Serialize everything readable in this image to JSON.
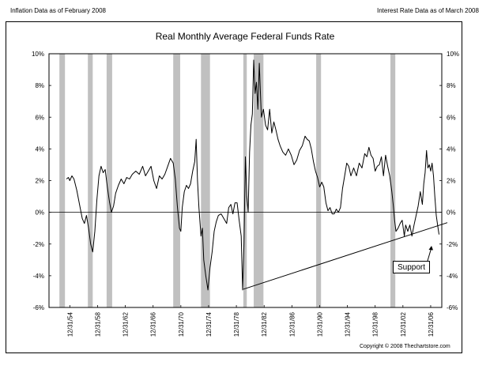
{
  "header": {
    "left_note": "Inflation Data as of February 2008",
    "right_note": "Interest Rate Data as of March 2008"
  },
  "footer": {
    "copyright": "Copyright © 2008 Thechartstore.com"
  },
  "colors": {
    "recession": "#c0c0c0",
    "line": "#000000",
    "background": "#ffffff"
  },
  "chart_data": {
    "type": "line",
    "title": "Real Monthly Average Federal Funds Rate",
    "xlabel": "",
    "ylabel": "",
    "ylim": [
      -6,
      10
    ],
    "xlim": [
      1951.0,
      2009.4
    ],
    "y_ticks": [
      10,
      8,
      6,
      4,
      2,
      0,
      -2,
      -4,
      -6
    ],
    "y_tick_labels": [
      "10%",
      "8%",
      "6%",
      "4%",
      "2%",
      "0%",
      "-2%",
      "-4%",
      "-6%"
    ],
    "x_ticks": [
      1955,
      1959,
      1963,
      1967,
      1971,
      1975,
      1979,
      1983,
      1987,
      1991,
      1995,
      1999,
      2003,
      2007
    ],
    "x_tick_labels": [
      "12/31/54",
      "12/31/58",
      "12/31/62",
      "12/31/66",
      "12/31/70",
      "12/31/74",
      "12/31/78",
      "12/31/82",
      "12/31/86",
      "12/31/90",
      "12/31/94",
      "12/31/98",
      "12/31/02",
      "12/31/06"
    ],
    "grid": false,
    "legend": "none",
    "recessions": [
      [
        1953.5,
        1954.3
      ],
      [
        1957.6,
        1958.3
      ],
      [
        1960.3,
        1961.1
      ],
      [
        1969.9,
        1970.9
      ],
      [
        1973.9,
        1975.2
      ],
      [
        1980.0,
        1980.5
      ],
      [
        1981.5,
        1982.9
      ],
      [
        1990.5,
        1991.2
      ],
      [
        2001.2,
        2001.9
      ]
    ],
    "series": [
      {
        "values": [
          [
            1954.5,
            2.1
          ],
          [
            1954.8,
            2.2
          ],
          [
            1955.0,
            2.0
          ],
          [
            1955.3,
            2.3
          ],
          [
            1955.6,
            2.1
          ],
          [
            1956.0,
            1.4
          ],
          [
            1956.4,
            0.5
          ],
          [
            1956.8,
            -0.4
          ],
          [
            1957.1,
            -0.7
          ],
          [
            1957.4,
            -0.2
          ],
          [
            1957.7,
            -1.0
          ],
          [
            1958.0,
            -2.0
          ],
          [
            1958.3,
            -2.5
          ],
          [
            1958.6,
            -1.2
          ],
          [
            1958.9,
            0.8
          ],
          [
            1959.2,
            2.3
          ],
          [
            1959.5,
            2.9
          ],
          [
            1959.8,
            2.5
          ],
          [
            1960.1,
            2.7
          ],
          [
            1960.4,
            1.6
          ],
          [
            1960.7,
            0.7
          ],
          [
            1961.0,
            0.0
          ],
          [
            1961.3,
            0.4
          ],
          [
            1961.6,
            1.2
          ],
          [
            1962.0,
            1.7
          ],
          [
            1962.4,
            2.1
          ],
          [
            1962.8,
            1.8
          ],
          [
            1963.2,
            2.2
          ],
          [
            1963.6,
            2.1
          ],
          [
            1964.0,
            2.4
          ],
          [
            1964.5,
            2.6
          ],
          [
            1965.0,
            2.4
          ],
          [
            1965.5,
            2.9
          ],
          [
            1965.9,
            2.3
          ],
          [
            1966.3,
            2.6
          ],
          [
            1966.7,
            2.9
          ],
          [
            1967.1,
            2.0
          ],
          [
            1967.5,
            1.5
          ],
          [
            1967.9,
            2.3
          ],
          [
            1968.3,
            2.1
          ],
          [
            1968.7,
            2.4
          ],
          [
            1969.1,
            2.9
          ],
          [
            1969.5,
            3.4
          ],
          [
            1969.9,
            3.1
          ],
          [
            1970.2,
            2.1
          ],
          [
            1970.5,
            0.4
          ],
          [
            1970.8,
            -1.0
          ],
          [
            1971.0,
            -1.2
          ],
          [
            1971.2,
            0.3
          ],
          [
            1971.5,
            1.3
          ],
          [
            1971.8,
            1.7
          ],
          [
            1972.1,
            1.5
          ],
          [
            1972.4,
            1.8
          ],
          [
            1972.7,
            2.6
          ],
          [
            1973.0,
            3.2
          ],
          [
            1973.2,
            4.6
          ],
          [
            1973.4,
            2.0
          ],
          [
            1973.6,
            0.3
          ],
          [
            1973.9,
            -1.5
          ],
          [
            1974.1,
            -1.0
          ],
          [
            1974.3,
            -3.0
          ],
          [
            1974.6,
            -4.0
          ],
          [
            1974.9,
            -4.9
          ],
          [
            1975.2,
            -3.5
          ],
          [
            1975.5,
            -2.5
          ],
          [
            1975.8,
            -1.2
          ],
          [
            1976.1,
            -0.6
          ],
          [
            1976.4,
            -0.2
          ],
          [
            1976.8,
            -0.1
          ],
          [
            1977.2,
            -0.4
          ],
          [
            1977.6,
            -0.7
          ],
          [
            1977.9,
            0.3
          ],
          [
            1978.2,
            0.5
          ],
          [
            1978.5,
            -0.1
          ],
          [
            1978.8,
            0.6
          ],
          [
            1979.1,
            0.6
          ],
          [
            1979.4,
            -0.5
          ],
          [
            1979.7,
            -1.5
          ],
          [
            1979.9,
            -4.9
          ],
          [
            1980.1,
            -2.0
          ],
          [
            1980.3,
            3.5
          ],
          [
            1980.5,
            1.0
          ],
          [
            1980.7,
            0.0
          ],
          [
            1980.9,
            3.8
          ],
          [
            1981.1,
            5.5
          ],
          [
            1981.3,
            6.2
          ],
          [
            1981.5,
            9.6
          ],
          [
            1981.7,
            7.5
          ],
          [
            1981.9,
            8.2
          ],
          [
            1982.1,
            6.5
          ],
          [
            1982.3,
            9.4
          ],
          [
            1982.6,
            6.0
          ],
          [
            1982.9,
            6.5
          ],
          [
            1983.2,
            5.5
          ],
          [
            1983.5,
            5.2
          ],
          [
            1983.8,
            6.5
          ],
          [
            1984.1,
            5.0
          ],
          [
            1984.4,
            5.7
          ],
          [
            1984.7,
            5.2
          ],
          [
            1985.0,
            4.6
          ],
          [
            1985.3,
            4.2
          ],
          [
            1985.7,
            3.8
          ],
          [
            1986.1,
            3.6
          ],
          [
            1986.5,
            4.0
          ],
          [
            1986.9,
            3.6
          ],
          [
            1987.3,
            3.0
          ],
          [
            1987.7,
            3.3
          ],
          [
            1988.1,
            3.9
          ],
          [
            1988.5,
            4.2
          ],
          [
            1988.9,
            4.8
          ],
          [
            1989.2,
            4.6
          ],
          [
            1989.5,
            4.5
          ],
          [
            1989.8,
            4.0
          ],
          [
            1990.1,
            3.2
          ],
          [
            1990.4,
            2.6
          ],
          [
            1990.7,
            2.2
          ],
          [
            1991.0,
            1.6
          ],
          [
            1991.3,
            1.9
          ],
          [
            1991.6,
            1.6
          ],
          [
            1991.9,
            0.6
          ],
          [
            1992.2,
            0.1
          ],
          [
            1992.5,
            0.3
          ],
          [
            1992.8,
            -0.1
          ],
          [
            1993.1,
            -0.1
          ],
          [
            1993.4,
            0.2
          ],
          [
            1993.7,
            0.0
          ],
          [
            1994.0,
            0.3
          ],
          [
            1994.3,
            1.5
          ],
          [
            1994.6,
            2.3
          ],
          [
            1994.9,
            3.1
          ],
          [
            1995.2,
            2.9
          ],
          [
            1995.5,
            2.3
          ],
          [
            1995.9,
            2.8
          ],
          [
            1996.3,
            2.3
          ],
          [
            1996.7,
            3.1
          ],
          [
            1997.1,
            2.8
          ],
          [
            1997.5,
            3.7
          ],
          [
            1997.8,
            3.5
          ],
          [
            1998.1,
            4.1
          ],
          [
            1998.4,
            3.6
          ],
          [
            1998.7,
            3.4
          ],
          [
            1999.0,
            2.6
          ],
          [
            1999.3,
            2.9
          ],
          [
            1999.6,
            3.0
          ],
          [
            1999.9,
            3.5
          ],
          [
            2000.2,
            2.3
          ],
          [
            2000.5,
            3.6
          ],
          [
            2000.8,
            2.9
          ],
          [
            2001.1,
            2.3
          ],
          [
            2001.4,
            1.3
          ],
          [
            2001.6,
            0.5
          ],
          [
            2001.8,
            -0.5
          ],
          [
            2002.0,
            -1.2
          ],
          [
            2002.3,
            -1.0
          ],
          [
            2002.6,
            -0.7
          ],
          [
            2002.9,
            -0.5
          ],
          [
            2003.2,
            -1.5
          ],
          [
            2003.4,
            -0.8
          ],
          [
            2003.7,
            -1.2
          ],
          [
            2004.0,
            -0.8
          ],
          [
            2004.3,
            -1.5
          ],
          [
            2004.6,
            -0.8
          ],
          [
            2004.9,
            -0.2
          ],
          [
            2005.2,
            0.4
          ],
          [
            2005.5,
            1.3
          ],
          [
            2005.8,
            0.5
          ],
          [
            2006.0,
            1.8
          ],
          [
            2006.2,
            2.5
          ],
          [
            2006.4,
            3.9
          ],
          [
            2006.6,
            2.8
          ],
          [
            2006.8,
            3.0
          ],
          [
            2007.0,
            2.6
          ],
          [
            2007.2,
            3.1
          ],
          [
            2007.4,
            2.3
          ],
          [
            2007.6,
            1.0
          ],
          [
            2007.8,
            -0.2
          ],
          [
            2008.0,
            -0.8
          ],
          [
            2008.2,
            -1.4
          ]
        ]
      }
    ],
    "annotations": [
      {
        "type": "trendline",
        "label": "Support",
        "from": [
          1980.0,
          -4.85
        ],
        "to": [
          2009.4,
          -0.65
        ]
      }
    ]
  }
}
